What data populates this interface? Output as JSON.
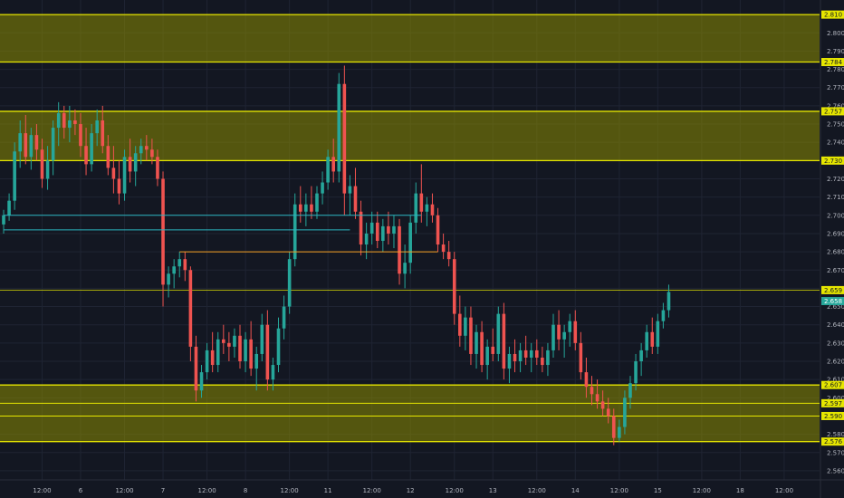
{
  "colors": {
    "background": "#131722",
    "grid": "#1f2433",
    "up": "#26a69a",
    "down": "#ef5350",
    "zone_fill": "#8a8a00",
    "zone_line": "#e6e600",
    "last_price": "#26a69a",
    "h_line_teal": "#2bb5c0",
    "h_line_orange": "#f7a125"
  },
  "chart_data": {
    "type": "candlestick",
    "ylim": [
      2.555,
      2.818
    ],
    "y_ticks": [
      "2.560",
      "2.570",
      "2.580",
      "2.590",
      "2.600",
      "2.610",
      "2.620",
      "2.630",
      "2.640",
      "2.650",
      "2.660",
      "2.670",
      "2.680",
      "2.690",
      "2.700",
      "2.710",
      "2.720",
      "2.730",
      "2.740",
      "2.750",
      "2.760",
      "2.770",
      "2.780",
      "2.790",
      "2.800",
      "2.810"
    ],
    "x_ticks": [
      {
        "label": "12:00",
        "bar": 7
      },
      {
        "label": "6",
        "bar": 14
      },
      {
        "label": "12:00",
        "bar": 22
      },
      {
        "label": "7",
        "bar": 29
      },
      {
        "label": "12:00",
        "bar": 37
      },
      {
        "label": "8",
        "bar": 44
      },
      {
        "label": "12:00",
        "bar": 52
      },
      {
        "label": "11",
        "bar": 59
      },
      {
        "label": "12:00",
        "bar": 67
      },
      {
        "label": "12",
        "bar": 74
      },
      {
        "label": "12:00",
        "bar": 82
      },
      {
        "label": "13",
        "bar": 89
      },
      {
        "label": "12:00",
        "bar": 97
      },
      {
        "label": "14",
        "bar": 104
      },
      {
        "label": "12:00",
        "bar": 112
      },
      {
        "label": "15",
        "bar": 119
      },
      {
        "label": "12:00",
        "bar": 127
      },
      {
        "label": "18",
        "bar": 134
      },
      {
        "label": "12:00",
        "bar": 142
      }
    ],
    "zones": [
      {
        "top": 2.81,
        "bottom": 2.784,
        "top_label": "2.810",
        "bottom_label": "2.784"
      },
      {
        "top": 2.757,
        "bottom": 2.73,
        "top_label": "2.757",
        "bottom_label": "2.730"
      },
      {
        "top": 2.607,
        "bottom": 2.576,
        "top_label": "2.607",
        "bottom_label": "2.576"
      }
    ],
    "zone_inner_levels": [
      {
        "value": 2.597,
        "label": "2.597"
      },
      {
        "value": 2.59,
        "label": "2.590"
      }
    ],
    "levels": [
      {
        "value": 2.659,
        "label": "2.659"
      }
    ],
    "last_price": {
      "value": 2.658,
      "label": "2.658"
    },
    "hlines": [
      {
        "value": 2.7,
        "from_bar": 0,
        "to_bar": 76,
        "color": "teal"
      },
      {
        "value": 2.692,
        "from_bar": 0,
        "to_bar": 63,
        "color": "teal"
      },
      {
        "value": 2.68,
        "from_bar": 32,
        "to_bar": 79,
        "color": "orange"
      }
    ],
    "candles": [
      [
        2.695,
        2.703,
        2.69,
        2.7
      ],
      [
        2.7,
        2.712,
        2.697,
        2.708
      ],
      [
        2.708,
        2.74,
        2.703,
        2.735
      ],
      [
        2.735,
        2.752,
        2.726,
        2.745
      ],
      [
        2.745,
        2.755,
        2.728,
        2.732
      ],
      [
        2.732,
        2.748,
        2.725,
        2.744
      ],
      [
        2.744,
        2.75,
        2.73,
        2.736
      ],
      [
        2.736,
        2.742,
        2.715,
        2.72
      ],
      [
        2.72,
        2.738,
        2.714,
        2.73
      ],
      [
        2.73,
        2.752,
        2.722,
        2.748
      ],
      [
        2.748,
        2.762,
        2.738,
        2.756
      ],
      [
        2.756,
        2.76,
        2.742,
        2.748
      ],
      [
        2.748,
        2.76,
        2.74,
        2.752
      ],
      [
        2.752,
        2.758,
        2.744,
        2.75
      ],
      [
        2.75,
        2.756,
        2.732,
        2.738
      ],
      [
        2.738,
        2.748,
        2.722,
        2.728
      ],
      [
        2.728,
        2.75,
        2.724,
        2.745
      ],
      [
        2.745,
        2.758,
        2.738,
        2.752
      ],
      [
        2.752,
        2.76,
        2.734,
        2.738
      ],
      [
        2.738,
        2.744,
        2.722,
        2.726
      ],
      [
        2.726,
        2.738,
        2.712,
        2.72
      ],
      [
        2.72,
        2.73,
        2.706,
        2.712
      ],
      [
        2.712,
        2.736,
        2.708,
        2.732
      ],
      [
        2.732,
        2.742,
        2.718,
        2.724
      ],
      [
        2.724,
        2.738,
        2.716,
        2.734
      ],
      [
        2.734,
        2.742,
        2.728,
        2.738
      ],
      [
        2.738,
        2.744,
        2.73,
        2.736
      ],
      [
        2.736,
        2.742,
        2.728,
        2.732
      ],
      [
        2.732,
        2.736,
        2.716,
        2.72
      ],
      [
        2.72,
        2.724,
        2.65,
        2.662
      ],
      [
        2.662,
        2.672,
        2.655,
        2.668
      ],
      [
        2.668,
        2.676,
        2.66,
        2.672
      ],
      [
        2.672,
        2.68,
        2.666,
        2.676
      ],
      [
        2.676,
        2.68,
        2.664,
        2.67
      ],
      [
        2.67,
        2.672,
        2.62,
        2.628
      ],
      [
        2.628,
        2.634,
        2.598,
        2.604
      ],
      [
        2.604,
        2.618,
        2.6,
        2.614
      ],
      [
        2.614,
        2.63,
        2.61,
        2.626
      ],
      [
        2.626,
        2.636,
        2.614,
        2.618
      ],
      [
        2.618,
        2.636,
        2.614,
        2.632
      ],
      [
        2.632,
        2.64,
        2.624,
        2.63
      ],
      [
        2.63,
        2.636,
        2.62,
        2.628
      ],
      [
        2.628,
        2.638,
        2.622,
        2.634
      ],
      [
        2.634,
        2.64,
        2.616,
        2.62
      ],
      [
        2.62,
        2.636,
        2.614,
        2.632
      ],
      [
        2.632,
        2.642,
        2.612,
        2.616
      ],
      [
        2.616,
        2.628,
        2.604,
        2.624
      ],
      [
        2.624,
        2.646,
        2.62,
        2.64
      ],
      [
        2.64,
        2.648,
        2.604,
        2.61
      ],
      [
        2.61,
        2.622,
        2.604,
        2.618
      ],
      [
        2.618,
        2.644,
        2.614,
        2.638
      ],
      [
        2.638,
        2.656,
        2.632,
        2.65
      ],
      [
        2.65,
        2.68,
        2.646,
        2.676
      ],
      [
        2.676,
        2.712,
        2.672,
        2.706
      ],
      [
        2.706,
        2.716,
        2.696,
        2.702
      ],
      [
        2.702,
        2.712,
        2.694,
        2.706
      ],
      [
        2.706,
        2.716,
        2.698,
        2.702
      ],
      [
        2.702,
        2.716,
        2.698,
        2.712
      ],
      [
        2.712,
        2.724,
        2.706,
        2.718
      ],
      [
        2.718,
        2.736,
        2.714,
        2.732
      ],
      [
        2.732,
        2.742,
        2.718,
        2.724
      ],
      [
        2.724,
        2.778,
        2.718,
        2.772
      ],
      [
        2.772,
        2.782,
        2.7,
        2.712
      ],
      [
        2.712,
        2.722,
        2.7,
        2.716
      ],
      [
        2.716,
        2.726,
        2.698,
        2.702
      ],
      [
        2.702,
        2.708,
        2.678,
        2.684
      ],
      [
        2.684,
        2.696,
        2.676,
        2.69
      ],
      [
        2.69,
        2.702,
        2.684,
        2.696
      ],
      [
        2.696,
        2.702,
        2.682,
        2.686
      ],
      [
        2.686,
        2.698,
        2.68,
        2.694
      ],
      [
        2.694,
        2.702,
        2.684,
        2.69
      ],
      [
        2.69,
        2.7,
        2.682,
        2.694
      ],
      [
        2.694,
        2.698,
        2.662,
        2.668
      ],
      [
        2.668,
        2.684,
        2.66,
        2.674
      ],
      [
        2.674,
        2.7,
        2.668,
        2.696
      ],
      [
        2.696,
        2.718,
        2.69,
        2.712
      ],
      [
        2.712,
        2.728,
        2.696,
        2.702
      ],
      [
        2.702,
        2.71,
        2.694,
        2.706
      ],
      [
        2.706,
        2.712,
        2.696,
        2.7
      ],
      [
        2.7,
        2.704,
        2.68,
        2.684
      ],
      [
        2.684,
        2.69,
        2.676,
        2.68
      ],
      [
        2.68,
        2.686,
        2.672,
        2.676
      ],
      [
        2.676,
        2.68,
        2.64,
        2.646
      ],
      [
        2.646,
        2.656,
        2.628,
        2.634
      ],
      [
        2.634,
        2.65,
        2.626,
        2.644
      ],
      [
        2.644,
        2.65,
        2.618,
        2.624
      ],
      [
        2.624,
        2.64,
        2.616,
        2.636
      ],
      [
        2.636,
        2.642,
        2.614,
        2.618
      ],
      [
        2.618,
        2.632,
        2.61,
        2.628
      ],
      [
        2.628,
        2.638,
        2.62,
        2.624
      ],
      [
        2.624,
        2.65,
        2.62,
        2.646
      ],
      [
        2.646,
        2.652,
        2.61,
        2.616
      ],
      [
        2.616,
        2.628,
        2.608,
        2.624
      ],
      [
        2.624,
        2.632,
        2.614,
        2.62
      ],
      [
        2.62,
        2.63,
        2.614,
        2.626
      ],
      [
        2.626,
        2.634,
        2.618,
        2.622
      ],
      [
        2.622,
        2.63,
        2.614,
        2.626
      ],
      [
        2.626,
        2.632,
        2.618,
        2.622
      ],
      [
        2.622,
        2.628,
        2.614,
        2.618
      ],
      [
        2.618,
        2.63,
        2.612,
        2.626
      ],
      [
        2.626,
        2.646,
        2.622,
        2.64
      ],
      [
        2.64,
        2.648,
        2.626,
        2.632
      ],
      [
        2.632,
        2.64,
        2.622,
        2.636
      ],
      [
        2.636,
        2.646,
        2.628,
        2.642
      ],
      [
        2.642,
        2.648,
        2.626,
        2.63
      ],
      [
        2.63,
        2.636,
        2.61,
        2.614
      ],
      [
        2.614,
        2.622,
        2.6,
        2.606
      ],
      [
        2.606,
        2.612,
        2.596,
        2.602
      ],
      [
        2.602,
        2.61,
        2.594,
        2.598
      ],
      [
        2.598,
        2.604,
        2.59,
        2.594
      ],
      [
        2.594,
        2.6,
        2.586,
        2.59
      ],
      [
        2.59,
        2.594,
        2.574,
        2.578
      ],
      [
        2.578,
        2.588,
        2.576,
        2.584
      ],
      [
        2.584,
        2.604,
        2.58,
        2.6
      ],
      [
        2.6,
        2.612,
        2.594,
        2.608
      ],
      [
        2.608,
        2.624,
        2.604,
        2.62
      ],
      [
        2.62,
        2.63,
        2.612,
        2.626
      ],
      [
        2.626,
        2.64,
        2.622,
        2.636
      ],
      [
        2.636,
        2.644,
        2.624,
        2.628
      ],
      [
        2.628,
        2.646,
        2.624,
        2.642
      ],
      [
        2.642,
        2.652,
        2.638,
        2.648
      ],
      [
        2.648,
        2.662,
        2.644,
        2.658
      ]
    ]
  }
}
